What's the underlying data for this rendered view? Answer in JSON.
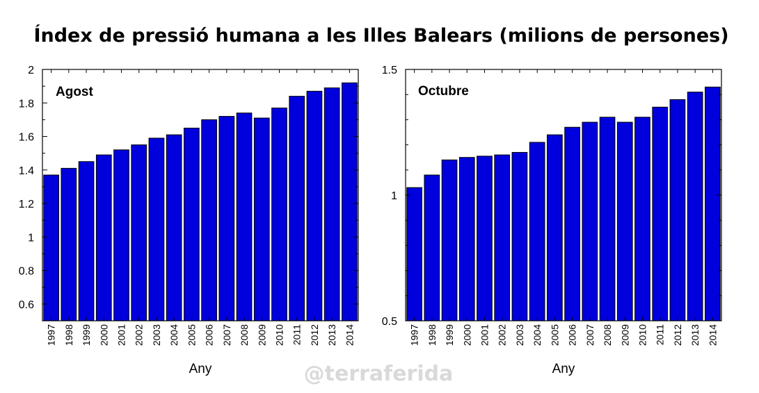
{
  "title": "Índex de pressió humana a les Illes Balears (milions de persones)",
  "watermark": "@terraferida",
  "colors": {
    "bar": "#0000dd",
    "bar_stroke": "#000000",
    "axis": "#000000"
  },
  "chart_data": [
    {
      "type": "bar",
      "panel_label": "Agost",
      "xlabel": "Any",
      "ylabel": "",
      "ylim": [
        0.5,
        2
      ],
      "yticks": [
        0.6,
        0.8,
        1,
        1.2,
        1.4,
        1.6,
        1.8,
        2
      ],
      "ytick_labels": [
        "0.6",
        "0.8",
        "1",
        "1.2",
        "1.4",
        "1.6",
        "1.8",
        "2"
      ],
      "categories": [
        "1997",
        "1998",
        "1999",
        "2000",
        "2001",
        "2002",
        "2003",
        "2004",
        "2005",
        "2006",
        "2007",
        "2008",
        "2009",
        "2010",
        "2011",
        "2012",
        "2013",
        "2014"
      ],
      "values": [
        1.37,
        1.41,
        1.45,
        1.49,
        1.52,
        1.55,
        1.59,
        1.61,
        1.65,
        1.7,
        1.72,
        1.74,
        1.71,
        1.77,
        1.84,
        1.87,
        1.89,
        1.92
      ]
    },
    {
      "type": "bar",
      "panel_label": "Octubre",
      "xlabel": "Any",
      "ylabel": "",
      "ylim": [
        0.5,
        1.5
      ],
      "yticks": [
        0.5,
        1,
        1.5
      ],
      "ytick_labels": [
        "0.5",
        "1",
        "1.5"
      ],
      "categories": [
        "1997",
        "1998",
        "1999",
        "2000",
        "2001",
        "2002",
        "2003",
        "2004",
        "2005",
        "2006",
        "2007",
        "2008",
        "2009",
        "2010",
        "2011",
        "2012",
        "2013",
        "2014"
      ],
      "values": [
        1.03,
        1.08,
        1.14,
        1.15,
        1.155,
        1.16,
        1.17,
        1.21,
        1.24,
        1.27,
        1.29,
        1.31,
        1.29,
        1.31,
        1.35,
        1.38,
        1.41,
        1.43
      ]
    }
  ]
}
